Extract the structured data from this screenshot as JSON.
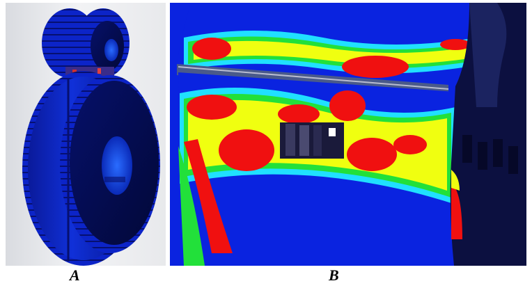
{
  "figure": {
    "panel_a_label": "A",
    "panel_b_label": "B"
  },
  "colors": {
    "low_stress": "#0a23e0",
    "mid_stress_cyan": "#20e0ff",
    "mid_stress_green": "#22e03a",
    "mid_stress_yellow": "#f0ff10",
    "high_stress": "#f01010",
    "background_a": "#eef0f2"
  }
}
